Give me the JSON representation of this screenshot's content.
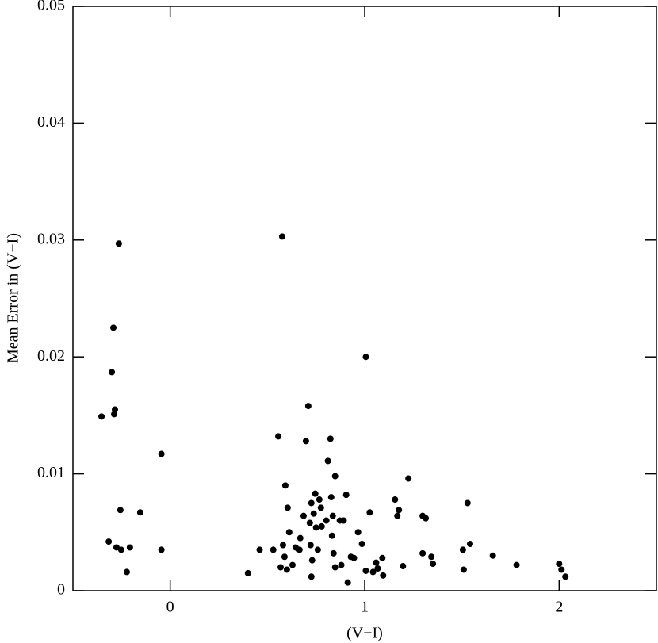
{
  "chart_data": {
    "type": "scatter",
    "xlabel": "(V−I)",
    "ylabel": "Mean Error in (V−I)",
    "color": "#000000",
    "xlim": [
      -0.5,
      2.5
    ],
    "xticks": [
      0,
      1,
      2
    ],
    "ylim": [
      0,
      0.05
    ],
    "yticks": [
      0,
      0.01,
      0.02,
      0.03,
      0.04,
      0.05
    ],
    "x": [
      -0.353,
      -0.264,
      -0.292,
      -0.3,
      -0.284,
      -0.288,
      -0.316,
      -0.276,
      -0.256,
      -0.252,
      -0.207,
      -0.223,
      -0.154,
      -0.045,
      -0.045,
      0.4,
      0.46,
      0.53,
      0.576,
      0.556,
      0.568,
      0.58,
      0.592,
      0.604,
      0.612,
      0.588,
      0.6,
      0.629,
      0.645,
      0.665,
      0.669,
      0.686,
      0.698,
      0.71,
      0.718,
      0.726,
      0.722,
      0.73,
      0.726,
      0.738,
      0.746,
      0.75,
      0.759,
      0.767,
      0.775,
      0.779,
      0.803,
      0.811,
      0.824,
      0.828,
      0.832,
      0.836,
      0.848,
      0.84,
      0.848,
      0.872,
      0.88,
      0.892,
      0.905,
      0.913,
      0.929,
      0.945,
      0.966,
      0.986,
      1.006,
      1.006,
      1.026,
      1.043,
      1.059,
      1.067,
      1.091,
      1.095,
      1.156,
      1.168,
      1.176,
      1.197,
      1.225,
      1.298,
      1.314,
      1.298,
      1.343,
      1.351,
      1.509,
      1.505,
      1.529,
      1.542,
      1.659,
      1.781,
      2.0,
      2.012,
      2.032
    ],
    "values": [
      0.0149,
      0.0297,
      0.0225,
      0.0187,
      0.0155,
      0.0151,
      0.0042,
      0.0037,
      0.0069,
      0.0035,
      0.0037,
      0.0016,
      0.0067,
      0.0117,
      0.0035,
      0.0015,
      0.0035,
      0.0035,
      0.0303,
      0.0132,
      0.002,
      0.0039,
      0.009,
      0.0071,
      0.005,
      0.0029,
      0.0018,
      0.0022,
      0.0037,
      0.0035,
      0.0045,
      0.0064,
      0.0128,
      0.0158,
      0.0058,
      0.0075,
      0.0039,
      0.0026,
      0.0012,
      0.0066,
      0.0083,
      0.0054,
      0.0035,
      0.0078,
      0.0071,
      0.0055,
      0.006,
      0.0111,
      0.013,
      0.008,
      0.0047,
      0.0064,
      0.0098,
      0.0032,
      0.002,
      0.006,
      0.0022,
      0.006,
      0.0082,
      0.0007,
      0.0029,
      0.0028,
      0.005,
      0.004,
      0.02,
      0.0017,
      0.0067,
      0.0016,
      0.0024,
      0.0019,
      0.0028,
      0.0013,
      0.0078,
      0.0064,
      0.0069,
      0.0021,
      0.0096,
      0.0064,
      0.0062,
      0.0032,
      0.0029,
      0.0023,
      0.0018,
      0.0035,
      0.0075,
      0.004,
      0.003,
      0.0022,
      0.0023,
      0.0018,
      0.0012
    ]
  }
}
